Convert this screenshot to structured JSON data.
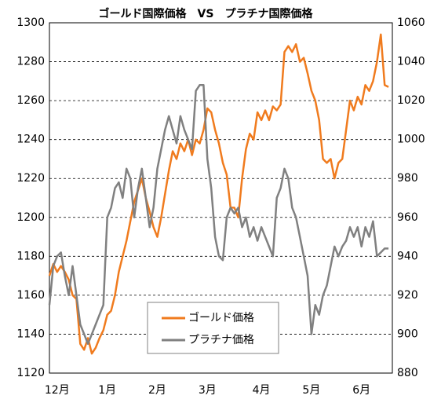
{
  "chart_data": {
    "type": "line",
    "title": "ゴールド国際価格　VS　プラチナ国際価格",
    "xlim": [
      0,
      89
    ],
    "xticks": [
      {
        "value": 2,
        "label": "12月"
      },
      {
        "value": 15,
        "label": "1月"
      },
      {
        "value": 28,
        "label": "2月"
      },
      {
        "value": 41,
        "label": "3月"
      },
      {
        "value": 55,
        "label": "4月"
      },
      {
        "value": 68,
        "label": "5月"
      },
      {
        "value": 81,
        "label": "6月"
      }
    ],
    "ylim": [
      1120,
      1300
    ],
    "yticks": [
      1120,
      1140,
      1160,
      1180,
      1200,
      1220,
      1240,
      1260,
      1280,
      1300
    ],
    "y2lim": [
      880,
      1060
    ],
    "y2ticks": [
      880,
      900,
      920,
      940,
      960,
      980,
      1000,
      1020,
      1040,
      1060
    ],
    "grid": true,
    "legend": "bottom-center",
    "series": [
      {
        "name": "ゴールド価格",
        "color": "#f07b1e",
        "values": [
          1170,
          1176,
          1172,
          1175,
          1172,
          1168,
          1160,
          1158,
          1135,
          1132,
          1138,
          1130,
          1133,
          1138,
          1142,
          1150,
          1152,
          1160,
          1172,
          1180,
          1188,
          1198,
          1208,
          1214,
          1220,
          1210,
          1203,
          1195,
          1190,
          1200,
          1212,
          1224,
          1234,
          1230,
          1238,
          1234,
          1240,
          1232,
          1240,
          1238,
          1245,
          1256,
          1254,
          1245,
          1238,
          1228,
          1222,
          1205,
          1205,
          1200,
          1220,
          1235,
          1243,
          1240,
          1254,
          1250,
          1255,
          1250,
          1257,
          1255,
          1258,
          1285,
          1288,
          1285,
          1289,
          1280,
          1282,
          1274,
          1265,
          1260,
          1250,
          1230,
          1228,
          1230,
          1220,
          1228,
          1230,
          1245,
          1260,
          1255,
          1262,
          1258,
          1268,
          1265,
          1270,
          1280,
          1294,
          1268,
          1267
        ]
      },
      {
        "name": "プラチナ価格",
        "color": "#808080",
        "axis": "y2",
        "values": [
          915,
          935,
          940,
          942,
          930,
          920,
          935,
          920,
          905,
          900,
          895,
          900,
          905,
          910,
          915,
          960,
          965,
          975,
          978,
          970,
          985,
          980,
          960,
          975,
          985,
          970,
          955,
          965,
          985,
          995,
          1005,
          1012,
          1005,
          998,
          1012,
          1005,
          1000,
          995,
          1025,
          1028,
          1028,
          990,
          975,
          950,
          940,
          938,
          960,
          965,
          962,
          965,
          955,
          960,
          950,
          955,
          948,
          955,
          950,
          945,
          940,
          970,
          975,
          985,
          980,
          965,
          960,
          950,
          940,
          930,
          900,
          915,
          910,
          920,
          925,
          935,
          945,
          940,
          945,
          948,
          955,
          950,
          955,
          945,
          955,
          950,
          958,
          940,
          942,
          944,
          944
        ]
      }
    ]
  }
}
